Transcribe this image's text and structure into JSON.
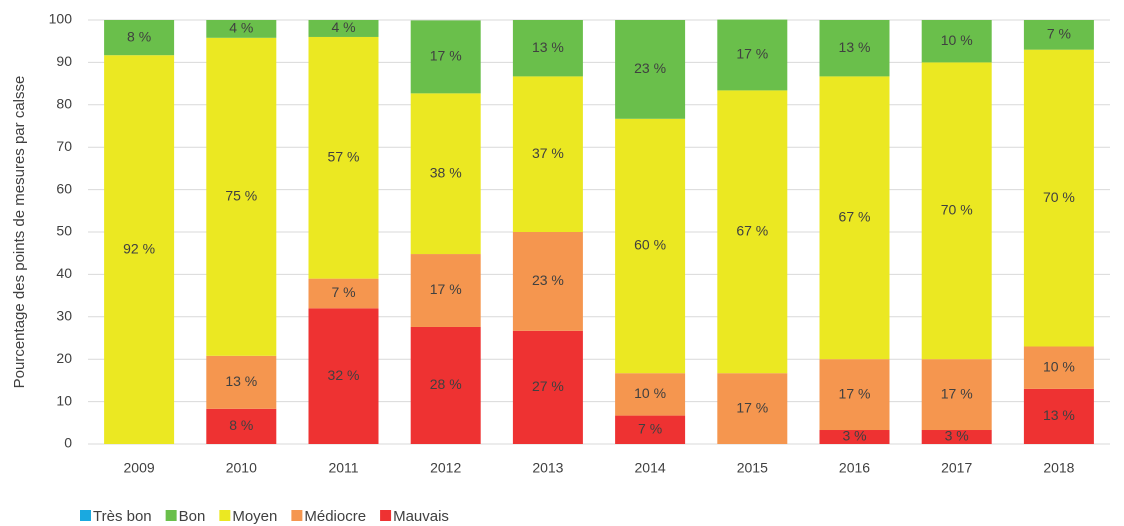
{
  "chart_data": {
    "type": "stacked_bar",
    "y_axis_label": "Pourcentage des points de mesures par calsse",
    "categories": [
      "2009",
      "2010",
      "2011",
      "2012",
      "2013",
      "2014",
      "2015",
      "2016",
      "2017",
      "2018"
    ],
    "ylim": [
      0,
      100
    ],
    "yticks": [
      0,
      10,
      20,
      30,
      40,
      50,
      60,
      70,
      80,
      90,
      100
    ],
    "grid": true,
    "series": [
      {
        "name": "Très bon",
        "color": "#1aa9e0",
        "values": [
          0,
          0,
          0,
          0,
          0,
          0,
          0,
          0,
          0,
          0
        ]
      },
      {
        "name": "Bon",
        "color": "#6abf4b",
        "values": [
          8.3,
          4.2,
          4,
          17.2,
          13.3,
          23.3,
          16.7,
          13.3,
          10,
          7
        ],
        "value_labels": [
          "8 %",
          "4 %",
          "4 %",
          "17 %",
          "13 %",
          "23 %",
          "17 %",
          "13 %",
          "10 %",
          "7 %"
        ]
      },
      {
        "name": "Moyen",
        "color": "#ebe822",
        "values": [
          91.7,
          75,
          57,
          37.9,
          36.7,
          60,
          66.7,
          66.7,
          70,
          70
        ],
        "value_labels": [
          "92 %",
          "75 %",
          "57 %",
          "38 %",
          "37 %",
          "60 %",
          "67 %",
          "67 %",
          "70 %",
          "70 %"
        ]
      },
      {
        "name": "Médiocre",
        "color": "#f5964f",
        "values": [
          0,
          12.5,
          7,
          17.2,
          23.3,
          10,
          16.7,
          16.7,
          16.7,
          10
        ],
        "value_labels": [
          null,
          "13 %",
          "7 %",
          "17 %",
          "23 %",
          "10 %",
          "17 %",
          "17 %",
          "17 %",
          "10 %"
        ]
      },
      {
        "name": "Mauvais",
        "color": "#ee3232",
        "values": [
          0,
          8.3,
          32,
          27.6,
          26.7,
          6.7,
          0,
          3.3,
          3.3,
          13
        ],
        "value_labels": [
          null,
          "8 %",
          "32 %",
          "28 %",
          "27 %",
          "7 %",
          null,
          "3 %",
          "3 %",
          "13 %"
        ]
      }
    ]
  }
}
